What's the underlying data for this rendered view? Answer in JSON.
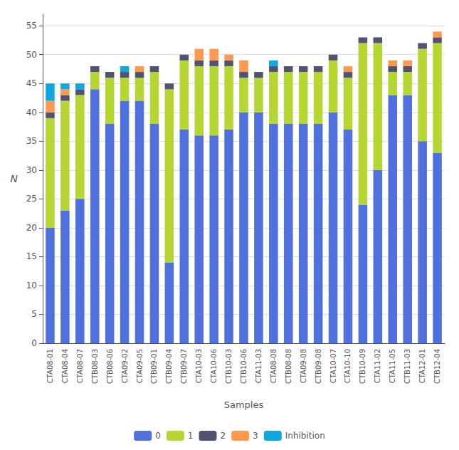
{
  "chart_data": {
    "type": "bar",
    "stacked": true,
    "xlabel": "Samples",
    "ylabel": "N",
    "categories": [
      "CTA08-01",
      "CTA08-04",
      "CTA08-07",
      "CTB08-03",
      "CTB08-06",
      "CTA09-02",
      "CTA09-05",
      "CTB09-01",
      "CTB09-04",
      "CTB09-07",
      "CTA10-03",
      "CTA10-06",
      "CTB10-03",
      "CTB10-06",
      "CTA11-03",
      "CTA08-08",
      "CTB08-08",
      "CTA09-08",
      "CTB09-08",
      "CTA10-07",
      "CTA10-10",
      "CTB10-09",
      "CTA11-02",
      "CTA11-05",
      "CTB11-03",
      "CTA12-01",
      "CTB12-04"
    ],
    "series": [
      {
        "name": "0",
        "values": [
          20,
          23,
          25,
          44,
          38,
          42,
          42,
          38,
          14,
          37,
          36,
          36,
          37,
          40,
          40,
          38,
          38,
          38,
          38,
          40,
          37,
          24,
          30,
          43,
          43,
          35,
          33
        ]
      },
      {
        "name": "1",
        "values": [
          19,
          19,
          18,
          3,
          8,
          4,
          4,
          9,
          30,
          12,
          12,
          12,
          11,
          6,
          6,
          9,
          9,
          9,
          9,
          9,
          9,
          28,
          22,
          4,
          4,
          16,
          19
        ]
      },
      {
        "name": "2",
        "values": [
          1,
          1,
          1,
          1,
          1,
          1,
          1,
          1,
          1,
          1,
          1,
          1,
          1,
          1,
          1,
          1,
          1,
          1,
          1,
          1,
          1,
          1,
          1,
          1,
          1,
          1,
          1
        ]
      },
      {
        "name": "3",
        "values": [
          2,
          1,
          0,
          0,
          0,
          0,
          1,
          0,
          0,
          0,
          2,
          2,
          1,
          2,
          0,
          0,
          0,
          0,
          0,
          0,
          1,
          0,
          0,
          1,
          1,
          0,
          1
        ]
      },
      {
        "name": "Inhibition",
        "values": [
          3,
          1,
          1,
          0,
          0,
          1,
          0,
          0,
          0,
          0,
          0,
          0,
          0,
          0,
          0,
          1,
          0,
          0,
          0,
          0,
          0,
          0,
          0,
          0,
          0,
          0,
          0
        ]
      }
    ],
    "ylim": [
      0,
      57
    ],
    "yticks": [
      0,
      5,
      10,
      15,
      20,
      25,
      30,
      35,
      40,
      45,
      50,
      55
    ],
    "grid": true,
    "legend": "bottom"
  }
}
